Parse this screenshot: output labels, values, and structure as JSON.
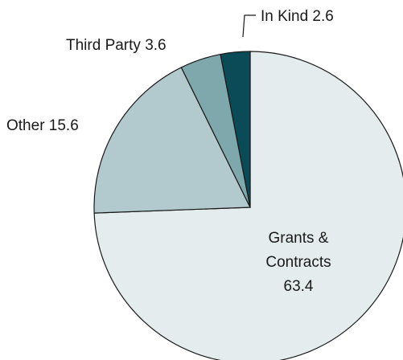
{
  "chart_data": {
    "type": "pie",
    "slices": [
      {
        "label": "Grants & Contracts",
        "value": 63.4,
        "color": "#e4ecee"
      },
      {
        "label": "Other",
        "value": 15.6,
        "color": "#b2c9cd"
      },
      {
        "label": "Third Party",
        "value": 3.6,
        "color": "#7fa8ad"
      },
      {
        "label": "In Kind",
        "value": 2.6,
        "color": "#0b4a57"
      }
    ],
    "labels": {
      "grants": [
        "Grants &",
        "Contracts",
        "63.4"
      ],
      "other": "Other 15.6",
      "third_party": "Third Party 3.6",
      "in_kind": "In Kind 2.6"
    }
  }
}
